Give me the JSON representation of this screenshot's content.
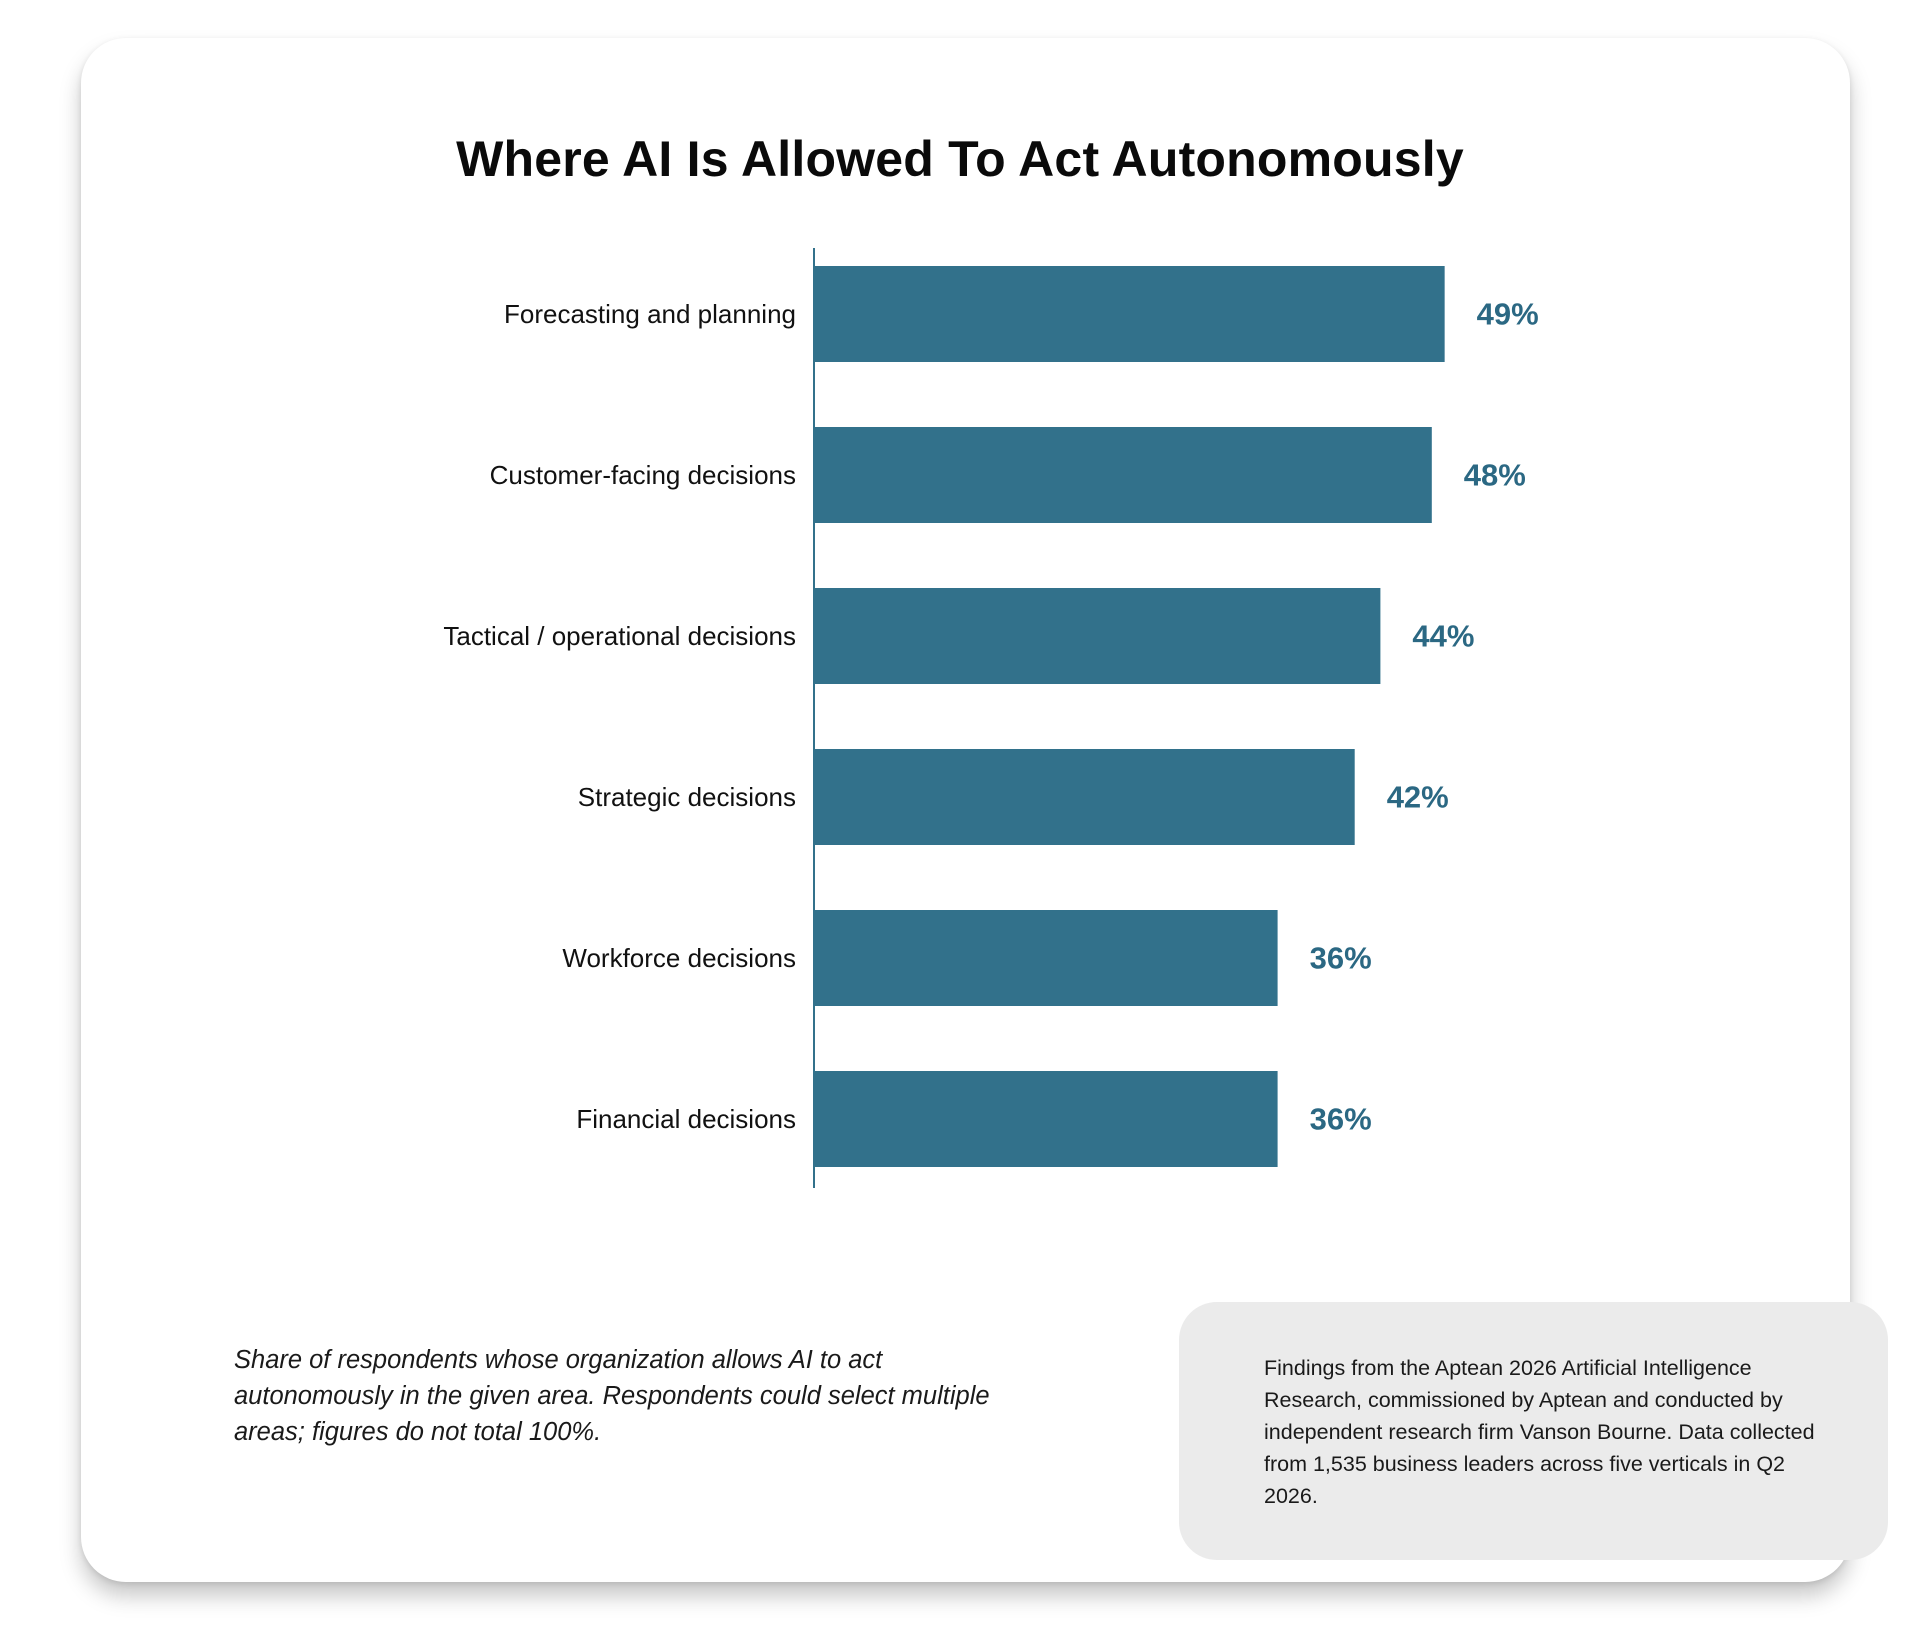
{
  "title": "Where AI Is Allowed To Act Autonomously",
  "footnote": "Share of respondents whose organization allows AI to act autonomously in the given area. Respondents could select multiple areas; figures do not total 100%.",
  "source_note": "Findings from the Aptean 2026 Artificial Intelligence Research, commissioned by Aptean and conducted by independent research firm Vanson Bourne. Data collected from 1,535 business leaders across five verticals in Q2 2026.",
  "colors": {
    "bar": "#32718b",
    "value_label": "#2b6883",
    "axis": "#32718b"
  },
  "chart_data": {
    "type": "bar",
    "orientation": "horizontal",
    "title": "Where AI Is Allowed To Act Autonomously",
    "categories": [
      "Forecasting and planning",
      "Customer-facing decisions",
      "Tactical / operational decisions",
      "Strategic decisions",
      "Workforce decisions",
      "Financial decisions"
    ],
    "values": [
      49,
      48,
      44,
      42,
      36,
      36
    ],
    "value_labels": [
      "49%",
      "48%",
      "44%",
      "42%",
      "36%",
      "36%"
    ],
    "unit": "%",
    "xlim": [
      0,
      100
    ],
    "grid": false,
    "legend": "none"
  }
}
